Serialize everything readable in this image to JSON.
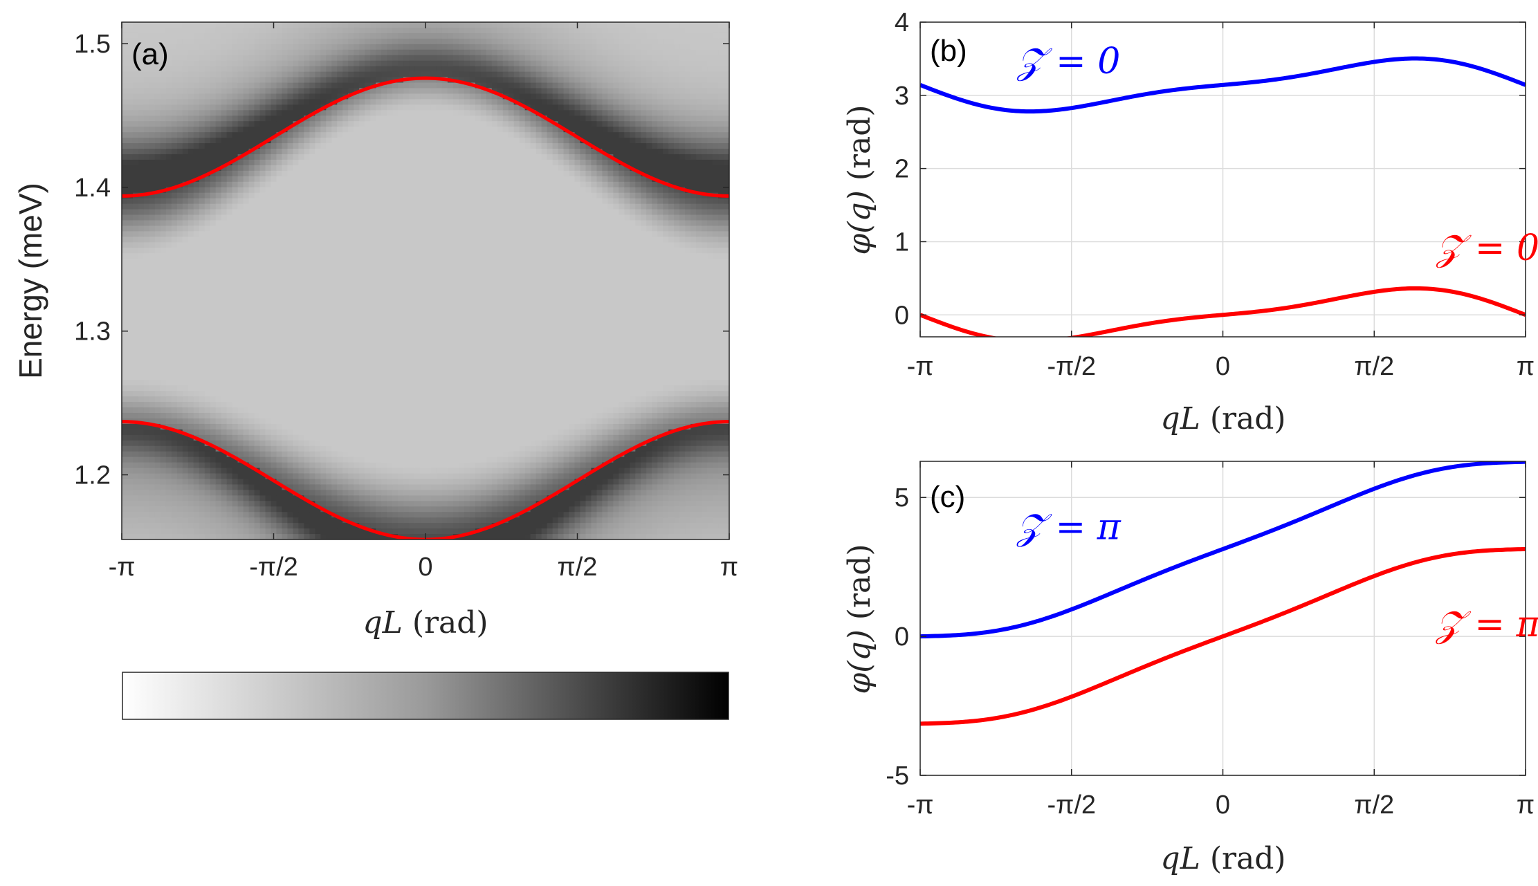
{
  "colors": {
    "blue": "#0000ff",
    "red": "#ff0000",
    "axis": "#262626",
    "grid": "#dcdcdc",
    "map_light": "#ececec",
    "map_dark": "#111111"
  },
  "chart_data": [
    {
      "id": "a",
      "type": "heatmap",
      "panel_label": "(a)",
      "ylabel": "Energy (meV)",
      "xlabel": "qL (rad)",
      "xlabel_math": "qL",
      "xlabel_unit": "(rad)",
      "x_ticks": [
        {
          "value": -3.14159,
          "label": "-π"
        },
        {
          "value": -1.5708,
          "label": "-π/2"
        },
        {
          "value": 0,
          "label": "0"
        },
        {
          "value": 1.5708,
          "label": "π/2"
        },
        {
          "value": 3.14159,
          "label": "π"
        }
      ],
      "y_ticks": [
        {
          "value": 1.2,
          "label": "1.2"
        },
        {
          "value": 1.3,
          "label": "1.3"
        },
        {
          "value": 1.4,
          "label": "1.4"
        },
        {
          "value": 1.5,
          "label": "1.5"
        }
      ],
      "xlim": [
        -3.14159,
        3.14159
      ],
      "ylim": [
        1.155,
        1.515
      ],
      "grid": false,
      "colormap": "gray (white = low, black = high)",
      "series": [
        {
          "name": "upper band",
          "color": "#ff0000",
          "center": 1.435,
          "amplitude": 0.041
        },
        {
          "name": "lower band",
          "color": "#ff0000",
          "center": 1.196,
          "amplitude": -0.041
        }
      ],
      "colorbar": {
        "orientation": "horizontal",
        "ticks": []
      }
    },
    {
      "id": "b",
      "type": "line",
      "panel_label": "(b)",
      "ylabel": "φ(q) (rad)",
      "ylabel_math": "φ(q)",
      "ylabel_unit": "(rad)",
      "xlabel": "qL (rad)",
      "xlabel_math": "qL",
      "xlabel_unit": "(rad)",
      "x_ticks": [
        {
          "value": -3.14159,
          "label": "-π"
        },
        {
          "value": -1.5708,
          "label": "-π/2"
        },
        {
          "value": 0,
          "label": "0"
        },
        {
          "value": 1.5708,
          "label": "π/2"
        },
        {
          "value": 3.14159,
          "label": "π"
        }
      ],
      "y_ticks": [
        {
          "value": 0,
          "label": "0"
        },
        {
          "value": 1,
          "label": "1"
        },
        {
          "value": 2,
          "label": "2"
        },
        {
          "value": 3,
          "label": "3"
        },
        {
          "value": 4,
          "label": "4"
        }
      ],
      "xlim": [
        -3.14159,
        3.14159
      ],
      "ylim": [
        -0.3,
        4
      ],
      "grid": true,
      "series": [
        {
          "name": "Z = 0 (blue)",
          "color": "#0000ff",
          "offset": 3.14159,
          "amp": 0.315,
          "pattern": "smooth"
        },
        {
          "name": "Z = 0 (red)",
          "color": "#ff0000",
          "offset": 0,
          "amp": 0.315,
          "pattern": "smooth"
        }
      ],
      "annotations": [
        {
          "text": "𝒵 = 0",
          "color": "#0000ff",
          "x": -1.6,
          "y": 3.3
        },
        {
          "text": "𝒵 = 0",
          "color": "#ff0000",
          "x": 2.75,
          "y": 0.75
        }
      ]
    },
    {
      "id": "c",
      "type": "line",
      "panel_label": "(c)",
      "ylabel": "φ(q) (rad)",
      "ylabel_math": "φ(q)",
      "ylabel_unit": "(rad)",
      "xlabel": "qL (rad)",
      "xlabel_math": "qL",
      "xlabel_unit": "(rad)",
      "x_ticks": [
        {
          "value": -3.14159,
          "label": "-π"
        },
        {
          "value": -1.5708,
          "label": "-π/2"
        },
        {
          "value": 0,
          "label": "0"
        },
        {
          "value": 1.5708,
          "label": "π/2"
        },
        {
          "value": 3.14159,
          "label": "π"
        }
      ],
      "y_ticks": [
        {
          "value": -5,
          "label": "-5"
        },
        {
          "value": 0,
          "label": "0"
        },
        {
          "value": 5,
          "label": "5"
        }
      ],
      "xlim": [
        -3.14159,
        3.14159
      ],
      "ylim": [
        -5,
        6.3
      ],
      "grid": true,
      "series": [
        {
          "name": "Z = π (blue)",
          "color": "#0000ff",
          "offset": 3.14159,
          "amp": 0.315,
          "pattern": "winding"
        },
        {
          "name": "Z = π (red)",
          "color": "#ff0000",
          "offset": 0,
          "amp": 0.315,
          "pattern": "winding"
        }
      ],
      "annotations": [
        {
          "text": "𝒵 = π",
          "color": "#0000ff",
          "x": -1.6,
          "y": 3.5
        },
        {
          "text": "𝒵 = π",
          "color": "#ff0000",
          "x": 2.75,
          "y": 0.0
        }
      ]
    }
  ]
}
